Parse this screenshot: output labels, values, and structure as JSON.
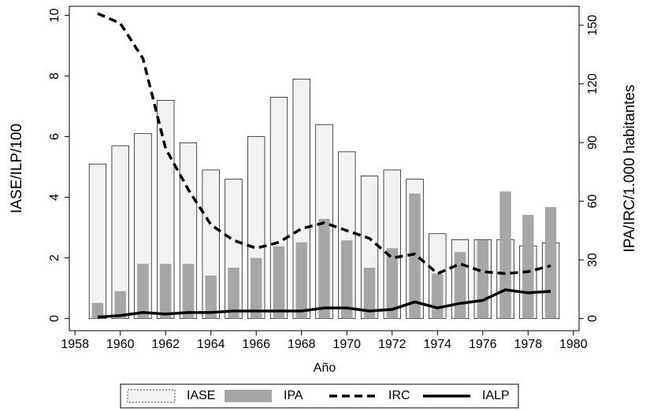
{
  "chart_data": {
    "type": "bar-line",
    "x_label": "Año",
    "y_label": "IASE/ILP/100",
    "y2_label": "IPA/IRC/1.000 habitantes",
    "x": [
      1959,
      1960,
      1961,
      1962,
      1963,
      1964,
      1965,
      1966,
      1967,
      1968,
      1969,
      1970,
      1971,
      1972,
      1973,
      1974,
      1975,
      1976,
      1977,
      1978,
      1979
    ],
    "xlim": [
      1957.75,
      1980.25
    ],
    "xticks": [
      1958,
      1960,
      1962,
      1964,
      1966,
      1968,
      1970,
      1972,
      1974,
      1976,
      1978,
      1980
    ],
    "ylim": [
      -0.4,
      10.3
    ],
    "yticks": [
      0,
      2,
      4,
      6,
      8,
      10
    ],
    "y2lim": [
      -6.2,
      159.7
    ],
    "y2ticks": [
      0,
      30,
      60,
      90,
      120,
      150
    ],
    "series": [
      {
        "name": "IASE",
        "mark": "bar",
        "axis": "y",
        "color": "#f2f2f2",
        "width": 0.75,
        "values": [
          5.1,
          5.7,
          6.1,
          7.2,
          5.8,
          4.9,
          4.6,
          6.0,
          7.3,
          7.9,
          6.4,
          5.5,
          4.7,
          4.9,
          4.6,
          2.8,
          2.6,
          2.6,
          2.6,
          2.4,
          2.5
        ]
      },
      {
        "name": "IPA",
        "mark": "bar",
        "axis": "y2",
        "color": "#a6a6a6",
        "width": 0.5,
        "values": [
          8,
          14,
          28,
          28,
          28,
          22,
          26,
          31,
          37,
          39,
          51,
          40,
          26,
          36,
          64,
          23,
          34,
          40,
          65,
          53,
          57
        ]
      },
      {
        "name": "IRC",
        "mark": "line",
        "axis": "y2",
        "color": "#000000",
        "dash": true,
        "values": [
          156,
          151,
          133,
          87,
          66,
          48,
          40,
          36,
          39,
          46,
          49,
          45,
          41,
          31,
          33,
          23,
          28,
          24,
          23,
          24,
          27
        ]
      },
      {
        "name": "IALP",
        "mark": "line",
        "axis": "y",
        "color": "#000000",
        "dash": false,
        "values": [
          0.05,
          0.1,
          0.2,
          0.15,
          0.2,
          0.2,
          0.25,
          0.25,
          0.25,
          0.25,
          0.35,
          0.35,
          0.25,
          0.3,
          0.55,
          0.35,
          0.5,
          0.6,
          0.95,
          0.85,
          0.9
        ]
      }
    ]
  }
}
